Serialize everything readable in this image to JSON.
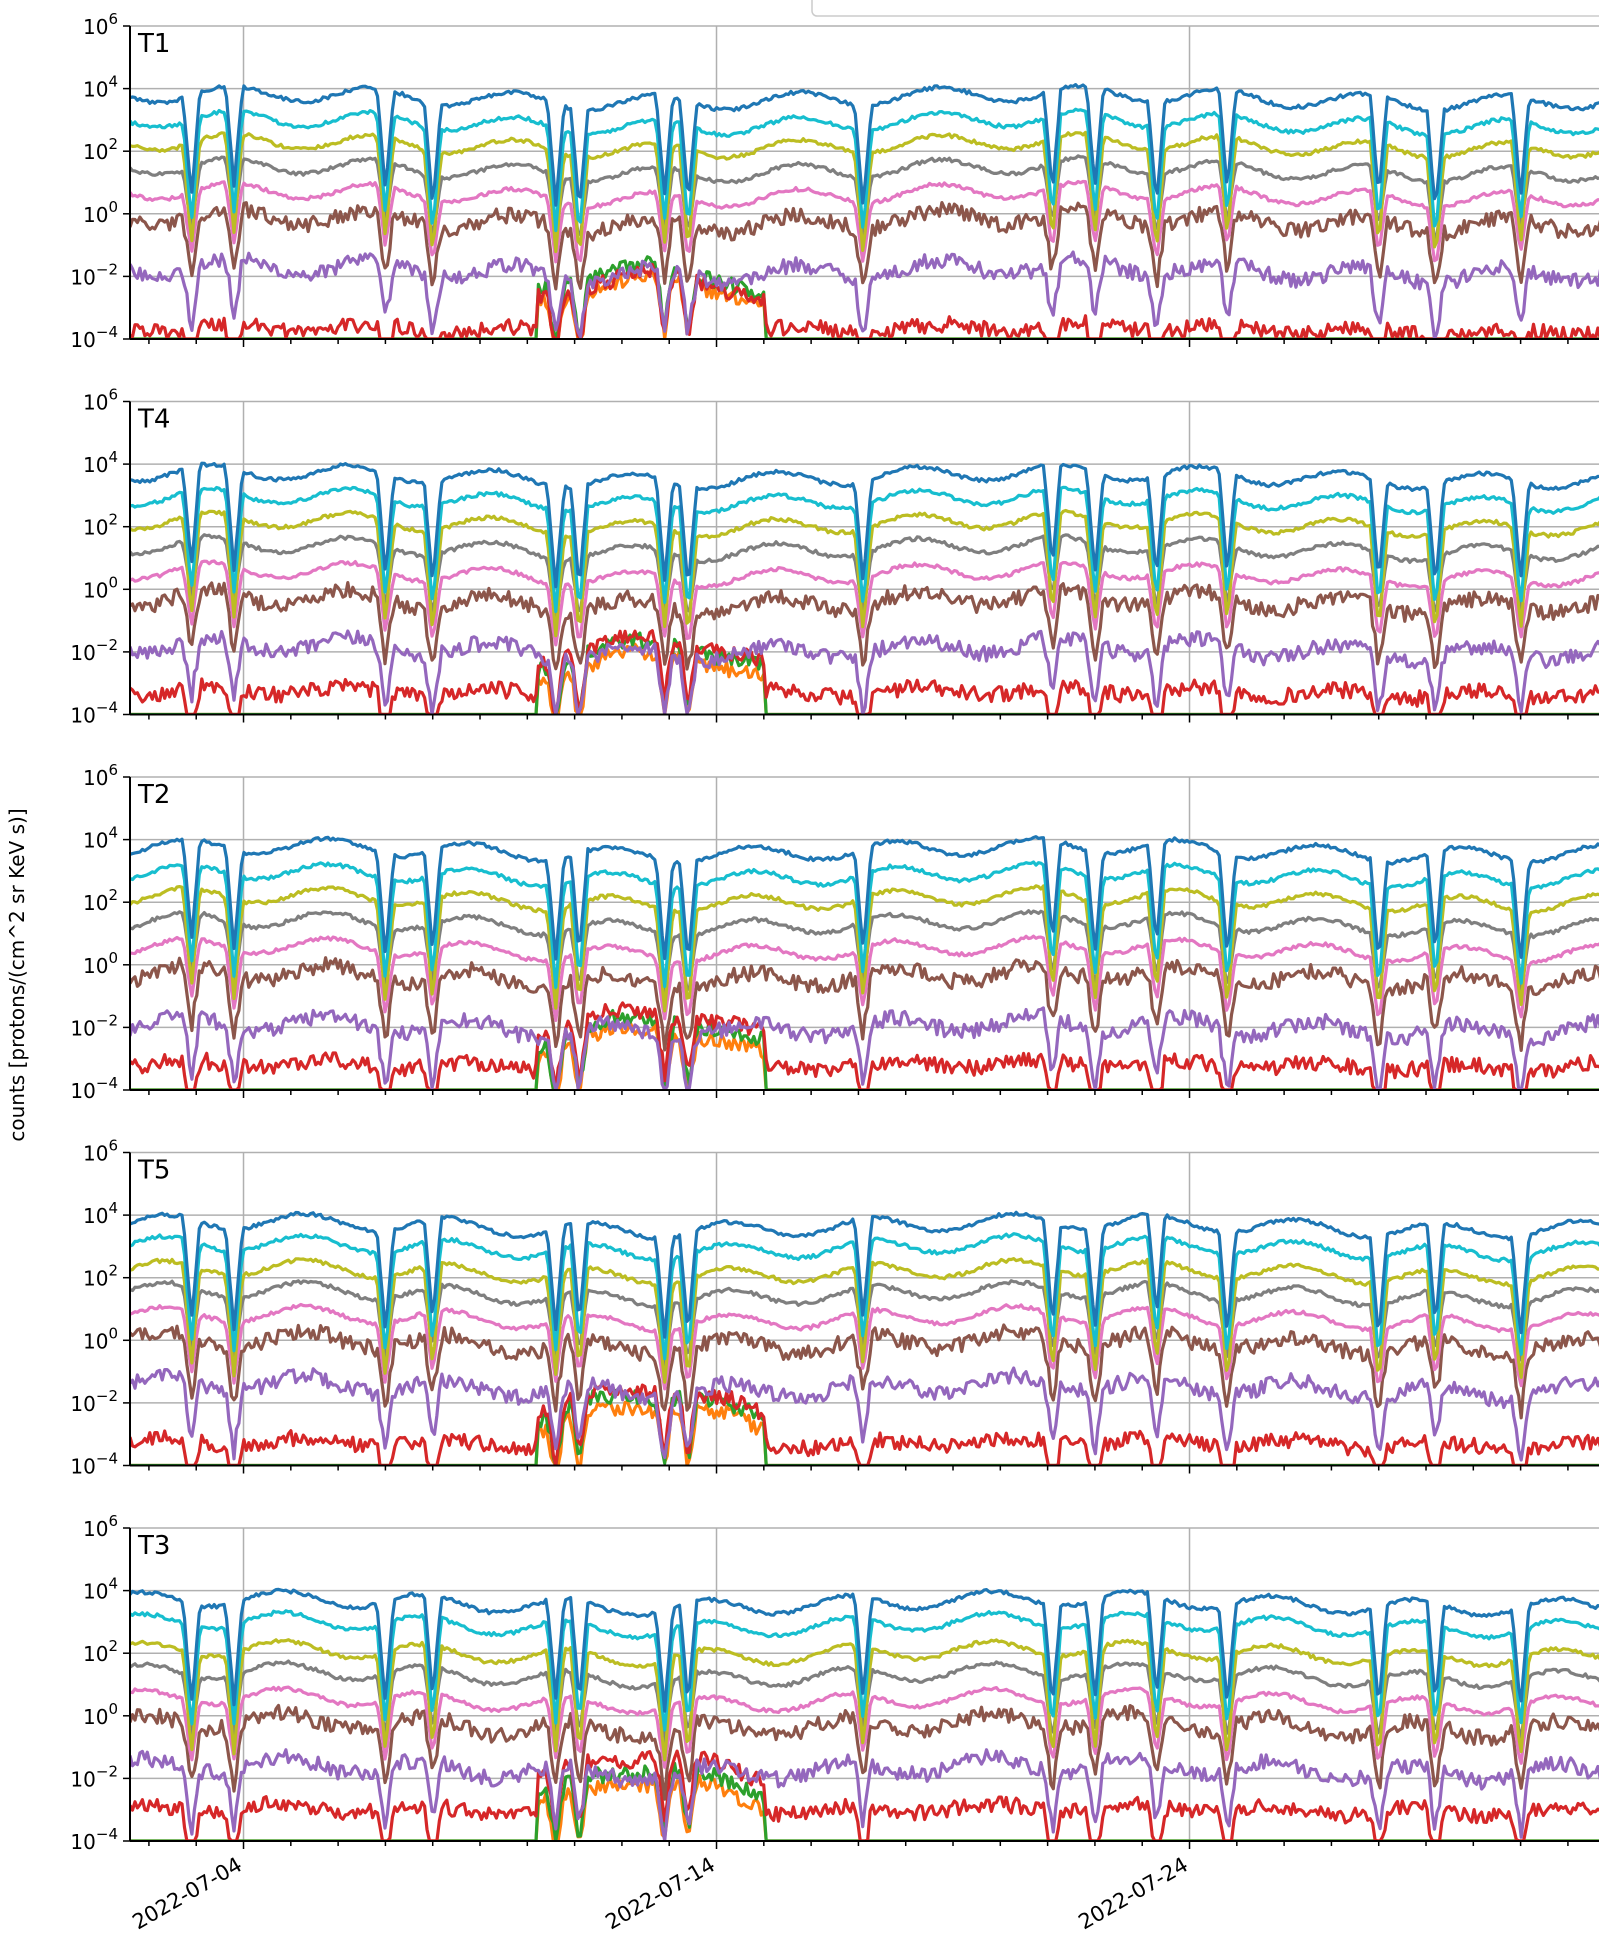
{
  "figure": {
    "ylabel": "counts [protons/(cm^2 sr KeV s)]"
  },
  "chart_data": {
    "type": "line",
    "log_y": true,
    "ylim": [
      0.0001,
      1000000
    ],
    "y_ticks": [
      {
        "base": "10",
        "exp": "6",
        "value": 1000000
      },
      {
        "base": "10",
        "exp": "4",
        "value": 10000
      },
      {
        "base": "10",
        "exp": "2",
        "value": 100
      },
      {
        "base": "10",
        "exp": "0",
        "value": 1
      },
      {
        "base": "10",
        "exp": "−2",
        "value": 0.01
      },
      {
        "base": "10",
        "exp": "−4",
        "value": 0.0001
      }
    ],
    "x_ticks": [
      "2022-07-04",
      "2022-07-14",
      "2022-07-24"
    ],
    "x_range": [
      "2022-07-01",
      "2022-08-01"
    ],
    "grid": true,
    "panels": [
      "T1",
      "T4",
      "T2",
      "T5",
      "T3"
    ],
    "channel_colors": [
      "#1f77b4",
      "#17becf",
      "#bcbd22",
      "#7f7f7f",
      "#e377c2",
      "#8c564b",
      "#9467bd",
      "#d62728",
      "#2ca02c",
      "#ff7f0e"
    ],
    "channel_levels_at_start": [
      [
        5000,
        800,
        150,
        25,
        4,
        0.6,
        0.015,
        0.0002,
        null,
        null
      ],
      [
        4000,
        700,
        120,
        20,
        3,
        0.4,
        0.012,
        0.0005,
        null,
        null
      ],
      [
        4500,
        700,
        120,
        20,
        3,
        0.4,
        0.01,
        0.0006,
        null,
        null
      ],
      [
        4500,
        900,
        150,
        30,
        5,
        0.8,
        0.03,
        0.0005,
        null,
        null
      ],
      [
        4000,
        800,
        100,
        20,
        3,
        0.5,
        0.02,
        0.001,
        null,
        null
      ]
    ]
  }
}
